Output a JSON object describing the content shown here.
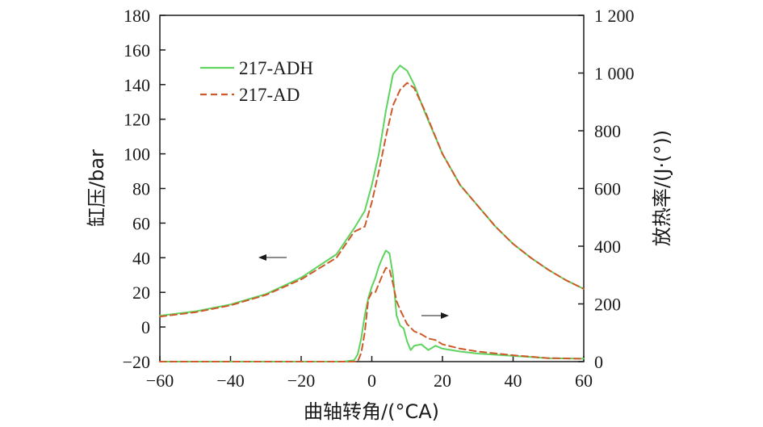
{
  "chart_data": {
    "type": "line",
    "xlabel": "曲轴转角/(°CA)",
    "ylabel_left": "缸压/bar",
    "ylabel_right": "放热率/(J·(°))",
    "xlim": [
      -60,
      60
    ],
    "ylim_left": [
      -20,
      180
    ],
    "ylim_right": [
      0,
      1200
    ],
    "x_ticks": [
      -60,
      -40,
      -20,
      0,
      20,
      40,
      60
    ],
    "x_tick_labels": [
      "−60",
      "−40",
      "−20",
      "0",
      "20",
      "40",
      "60"
    ],
    "y_left_ticks": [
      -20,
      0,
      20,
      40,
      60,
      80,
      100,
      120,
      140,
      160,
      180
    ],
    "y_left_tick_labels": [
      "−20",
      "0",
      "20",
      "40",
      "60",
      "80",
      "100",
      "120",
      "140",
      "160",
      "180"
    ],
    "y_right_ticks": [
      0,
      200,
      400,
      600,
      800,
      1000,
      1200
    ],
    "y_right_tick_labels": [
      "0",
      "200",
      "400",
      "600",
      "800",
      "1 000",
      "1 200"
    ],
    "grid": false,
    "legend_position": "top-left",
    "colors": {
      "ADH": "#5fd35f",
      "AD": "#cc5a2a",
      "axis": "#1a1a1a"
    },
    "legend": [
      {
        "label": "217-ADH",
        "style": "solid",
        "color": "#5fd35f"
      },
      {
        "label": "217-AD",
        "style": "dashed",
        "color": "#cc5a2a"
      }
    ],
    "series": [
      {
        "name": "217-ADH",
        "quantity": "pressure",
        "axis": "left",
        "points": [
          [
            -60,
            6.5
          ],
          [
            -50,
            9
          ],
          [
            -40,
            13
          ],
          [
            -30,
            19
          ],
          [
            -20,
            28.5
          ],
          [
            -10,
            42
          ],
          [
            -5,
            57
          ],
          [
            -2,
            67
          ],
          [
            0,
            82
          ],
          [
            2,
            100
          ],
          [
            4,
            125
          ],
          [
            6,
            146
          ],
          [
            8,
            151
          ],
          [
            10,
            148
          ],
          [
            12,
            140
          ],
          [
            15,
            124
          ],
          [
            20,
            100
          ],
          [
            25,
            82
          ],
          [
            30,
            70
          ],
          [
            35,
            58
          ],
          [
            40,
            48
          ],
          [
            45,
            40
          ],
          [
            50,
            33
          ],
          [
            55,
            27
          ],
          [
            60,
            22
          ]
        ]
      },
      {
        "name": "217-AD",
        "quantity": "pressure",
        "axis": "left",
        "points": [
          [
            -60,
            6
          ],
          [
            -50,
            8.5
          ],
          [
            -40,
            12.5
          ],
          [
            -30,
            18.5
          ],
          [
            -20,
            27.5
          ],
          [
            -10,
            40
          ],
          [
            -5,
            55
          ],
          [
            -2,
            58
          ],
          [
            0,
            72
          ],
          [
            2,
            90
          ],
          [
            4,
            110
          ],
          [
            6,
            128
          ],
          [
            8,
            137
          ],
          [
            10,
            141
          ],
          [
            12,
            138
          ],
          [
            15,
            125
          ],
          [
            20,
            100
          ],
          [
            25,
            82
          ],
          [
            30,
            70
          ],
          [
            35,
            58
          ],
          [
            40,
            48
          ],
          [
            45,
            40
          ],
          [
            50,
            33
          ],
          [
            55,
            27
          ],
          [
            60,
            22
          ]
        ]
      },
      {
        "name": "217-ADH",
        "quantity": "heat_release_rate",
        "axis": "right",
        "points": [
          [
            -60,
            0
          ],
          [
            -40,
            0
          ],
          [
            -20,
            0
          ],
          [
            -8,
            0
          ],
          [
            -5,
            5
          ],
          [
            -4,
            25
          ],
          [
            -3,
            80
          ],
          [
            -2,
            160
          ],
          [
            -1,
            220
          ],
          [
            0,
            260
          ],
          [
            1,
            290
          ],
          [
            2,
            330
          ],
          [
            3,
            360
          ],
          [
            4,
            385
          ],
          [
            5,
            375
          ],
          [
            6,
            300
          ],
          [
            7,
            160
          ],
          [
            8,
            125
          ],
          [
            9,
            115
          ],
          [
            10,
            70
          ],
          [
            11,
            40
          ],
          [
            12,
            55
          ],
          [
            14,
            60
          ],
          [
            16,
            40
          ],
          [
            18,
            55
          ],
          [
            20,
            45
          ],
          [
            25,
            35
          ],
          [
            30,
            28
          ],
          [
            40,
            20
          ],
          [
            50,
            12
          ],
          [
            60,
            10
          ]
        ]
      },
      {
        "name": "217-AD",
        "quantity": "heat_release_rate",
        "axis": "right",
        "points": [
          [
            -60,
            0
          ],
          [
            -40,
            0
          ],
          [
            -20,
            0
          ],
          [
            -8,
            0
          ],
          [
            -4,
            0
          ],
          [
            -3,
            30
          ],
          [
            -2,
            100
          ],
          [
            -1,
            215
          ],
          [
            0,
            240
          ],
          [
            1,
            240
          ],
          [
            2,
            270
          ],
          [
            3,
            300
          ],
          [
            4,
            325
          ],
          [
            5,
            320
          ],
          [
            6,
            270
          ],
          [
            7,
            210
          ],
          [
            8,
            180
          ],
          [
            10,
            130
          ],
          [
            12,
            105
          ],
          [
            14,
            95
          ],
          [
            16,
            80
          ],
          [
            18,
            75
          ],
          [
            20,
            60
          ],
          [
            25,
            45
          ],
          [
            30,
            35
          ],
          [
            40,
            22
          ],
          [
            50,
            12
          ],
          [
            60,
            10
          ]
        ]
      }
    ]
  }
}
